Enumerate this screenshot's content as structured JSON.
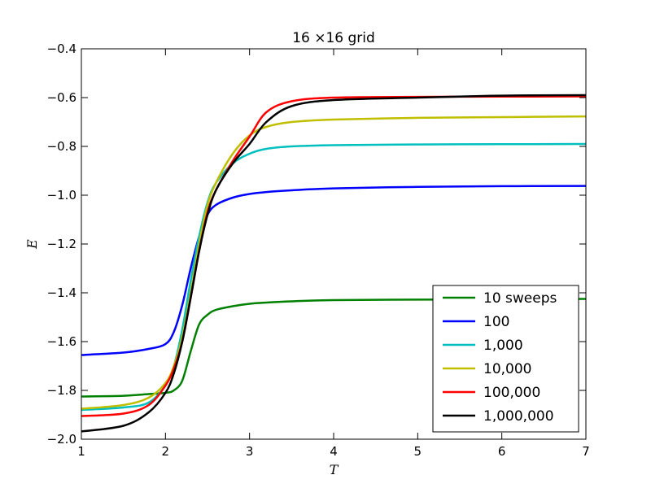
{
  "chart_data": {
    "type": "line",
    "title": "16 ×16 grid",
    "xlabel": "T",
    "ylabel": "E",
    "xlim": [
      1,
      7
    ],
    "ylim": [
      -2.0,
      -0.4
    ],
    "xticks": [
      1,
      2,
      3,
      4,
      5,
      6,
      7
    ],
    "xtick_labels": [
      "1",
      "2",
      "3",
      "4",
      "5",
      "6",
      "7"
    ],
    "yticks": [
      -2.0,
      -1.8,
      -1.6,
      -1.4,
      -1.2,
      -1.0,
      -0.8,
      -0.6,
      -0.4
    ],
    "ytick_labels": [
      "−2.0",
      "−1.8",
      "−1.6",
      "−1.4",
      "−1.2",
      "−1.0",
      "−0.8",
      "−0.6",
      "−0.4"
    ],
    "grid": false,
    "legend_position": "lower-right",
    "x": [
      1.0,
      1.5,
      1.8,
      2.0,
      2.1,
      2.2,
      2.3,
      2.4,
      2.5,
      2.6,
      2.8,
      3.0,
      3.2,
      3.5,
      4.0,
      5.0,
      6.0,
      7.0
    ],
    "series": [
      {
        "name": "10 sweeps",
        "color": "#008000",
        "values": [
          -1.825,
          -1.822,
          -1.815,
          -1.81,
          -1.8,
          -1.76,
          -1.64,
          -1.53,
          -1.49,
          -1.47,
          -1.455,
          -1.445,
          -1.44,
          -1.435,
          -1.43,
          -1.428,
          -1.427,
          -1.425
        ]
      },
      {
        "name": "100",
        "color": "#0000ff",
        "values": [
          -1.655,
          -1.645,
          -1.63,
          -1.61,
          -1.56,
          -1.45,
          -1.3,
          -1.17,
          -1.08,
          -1.04,
          -1.01,
          -0.995,
          -0.987,
          -0.98,
          -0.972,
          -0.966,
          -0.963,
          -0.962
        ]
      },
      {
        "name": "1,000",
        "color": "#00bfbf",
        "values": [
          -1.88,
          -1.87,
          -1.85,
          -1.78,
          -1.7,
          -1.55,
          -1.35,
          -1.17,
          -1.03,
          -0.95,
          -0.87,
          -0.83,
          -0.81,
          -0.8,
          -0.795,
          -0.792,
          -0.791,
          -0.79
        ]
      },
      {
        "name": "10,000",
        "color": "#bfbf00",
        "values": [
          -1.875,
          -1.86,
          -1.83,
          -1.77,
          -1.7,
          -1.58,
          -1.4,
          -1.2,
          -1.04,
          -0.95,
          -0.83,
          -0.755,
          -0.72,
          -0.7,
          -0.69,
          -0.683,
          -0.68,
          -0.677
        ]
      },
      {
        "name": "100,000",
        "color": "#ff0000",
        "values": [
          -1.905,
          -1.895,
          -1.86,
          -1.78,
          -1.71,
          -1.6,
          -1.42,
          -1.23,
          -1.07,
          -0.98,
          -0.86,
          -0.76,
          -0.66,
          -0.615,
          -0.6,
          -0.597,
          -0.596,
          -0.595
        ]
      },
      {
        "name": "1,000,000",
        "color": "#000000",
        "values": [
          -1.968,
          -1.945,
          -1.89,
          -1.81,
          -1.73,
          -1.6,
          -1.42,
          -1.23,
          -1.08,
          -0.98,
          -0.87,
          -0.79,
          -0.7,
          -0.635,
          -0.61,
          -0.6,
          -0.592,
          -0.59
        ]
      }
    ]
  }
}
